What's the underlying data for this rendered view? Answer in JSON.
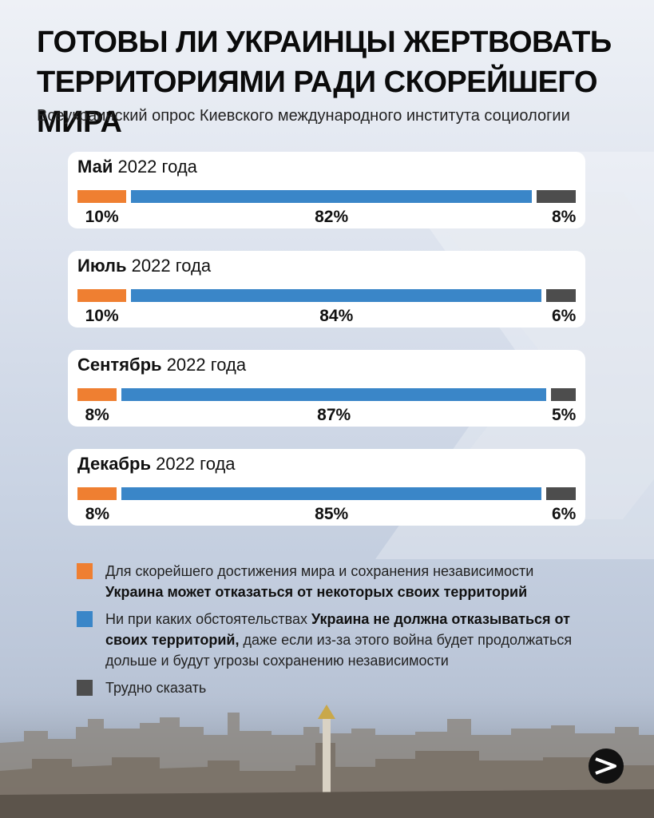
{
  "title": "ГОТОВЫ ЛИ УКРАИНЦЫ ЖЕРТВОВАТЬ ТЕРРИТОРИЯМИ РАДИ СКОРЕЙШЕГО МИРА",
  "subtitle": "Всеукраинский опрос Киевского международного института социологии",
  "colors": {
    "orange": "#ef7f31",
    "blue": "#3a86c8",
    "gray": "#4d4d4d"
  },
  "chart_data": {
    "type": "bar",
    "orientation": "horizontal-stacked-100",
    "title": "ГОТОВЫ ЛИ УКРАИНЦЫ ЖЕРТВОВАТЬ ТЕРРИТОРИЯМИ РАДИ СКОРЕЙШЕГО МИРА",
    "categories": [
      "Май",
      "Июль",
      "Сентябрь",
      "Декабрь"
    ],
    "category_suffix": "2022 года",
    "series": [
      {
        "name": "Для скорейшего достижения мира и сохранения независимости Украина может отказаться от некоторых своих территорий",
        "color": "#ef7f31",
        "values": [
          10,
          10,
          8,
          8
        ],
        "labels": [
          "10%",
          "10%",
          "8%",
          "8%"
        ]
      },
      {
        "name": "Ни при каких обстоятельствах Украина не должна отказываться от своих территорий, даже если из-за этого война будет продолжаться дольше и будут угрозы сохранению независимости",
        "color": "#3a86c8",
        "values": [
          82,
          84,
          87,
          85
        ],
        "labels": [
          "82%",
          "84%",
          "87%",
          "85%"
        ]
      },
      {
        "name": "Трудно сказать",
        "color": "#4d4d4d",
        "values": [
          8,
          6,
          5,
          6
        ],
        "labels": [
          "8%",
          "6%",
          "5%",
          "6%"
        ]
      }
    ],
    "legend_position": "bottom"
  },
  "legend": [
    {
      "color": "#ef7f31",
      "parts": [
        {
          "text": "Для скорейшего достижения мира и сохранения независимости ",
          "bold": false
        },
        {
          "text": "Украина может отказаться от некоторых своих территорий",
          "bold": true
        }
      ]
    },
    {
      "color": "#3a86c8",
      "parts": [
        {
          "text": "Ни при каких обстоятельствах ",
          "bold": false
        },
        {
          "text": "Украина не должна отказываться от своих территорий,",
          "bold": true
        },
        {
          "text": " даже если из-за этого война будет продолжаться дольше и будут угрозы сохранению независимости",
          "bold": false
        }
      ]
    },
    {
      "color": "#4d4d4d",
      "parts": [
        {
          "text": "Трудно сказать",
          "bold": false
        }
      ]
    }
  ],
  "logo_icon": "play-circle-logo-icon",
  "background": "kyiv-cityscape-maidan-photo"
}
